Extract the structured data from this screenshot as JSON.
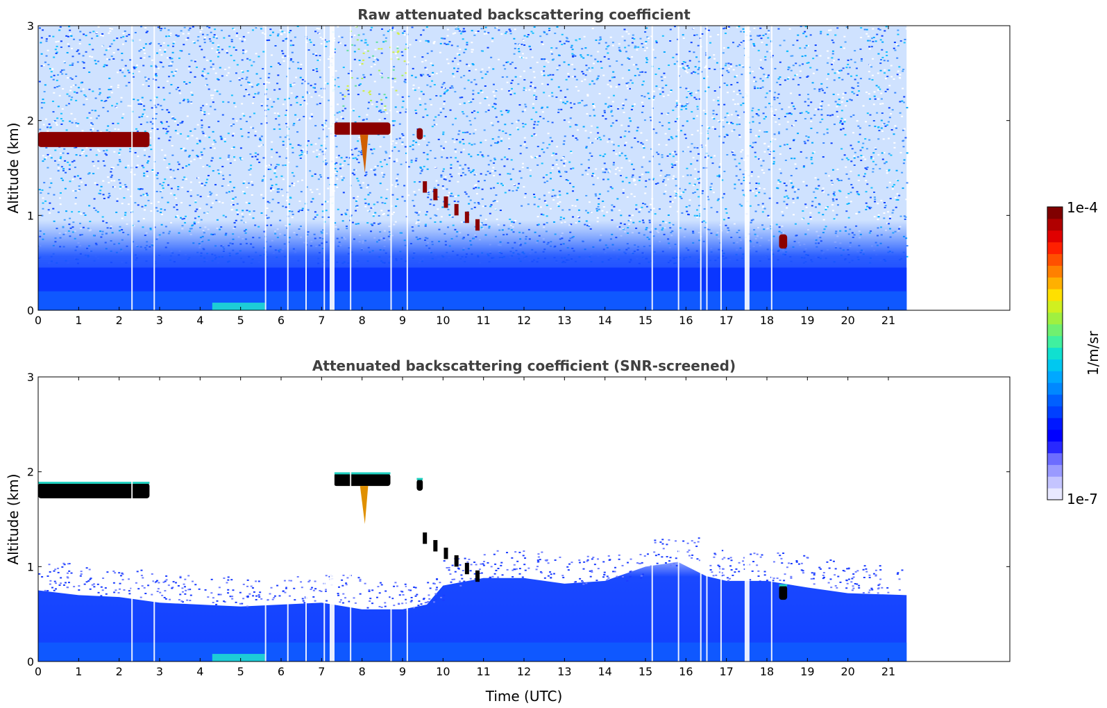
{
  "chart_data": [
    {
      "type": "heatmap",
      "title": "Raw attenuated backscattering coefficient",
      "xlabel": "",
      "ylabel": "Altitude (km)",
      "xlim": [
        0,
        24
      ],
      "ylim": [
        0,
        3
      ],
      "xticks": [
        "0",
        "1",
        "2",
        "3",
        "4",
        "5",
        "6",
        "7",
        "8",
        "9",
        "10",
        "11",
        "12",
        "13",
        "14",
        "15",
        "16",
        "17",
        "18",
        "19",
        "20",
        "21"
      ],
      "yticks": [
        "0",
        "1",
        "2",
        "3"
      ],
      "data_end_hour": 21.45,
      "features": [
        {
          "name": "cloud-layer",
          "x0": 0.0,
          "x1": 2.75,
          "y0": 1.72,
          "y1": 1.88,
          "level": "high"
        },
        {
          "name": "cloud-layer",
          "x0": 7.3,
          "x1": 8.7,
          "y0": 1.85,
          "y1": 1.98,
          "level": "high"
        },
        {
          "name": "virga",
          "x0": 7.95,
          "x1": 8.15,
          "y0": 1.45,
          "y1": 1.85,
          "level": "mid"
        },
        {
          "name": "cloud-fragment",
          "x0": 9.35,
          "x1": 9.5,
          "y0": 1.8,
          "y1": 1.92,
          "level": "high"
        },
        {
          "name": "falling-streak",
          "x0": 9.5,
          "x1": 10.8,
          "y0": 0.9,
          "y1": 1.3,
          "level": "high"
        },
        {
          "name": "aerosol-hotspot",
          "x0": 4.3,
          "x1": 5.6,
          "y0": 0.0,
          "y1": 0.08,
          "level": "mid"
        },
        {
          "name": "plume",
          "x0": 18.3,
          "x1": 18.5,
          "y0": 0.65,
          "y1": 0.8,
          "level": "high"
        }
      ],
      "gaps": [
        2.3,
        2.85,
        5.6,
        6.15,
        6.6,
        7.05,
        7.2,
        7.7,
        8.7,
        9.1,
        15.15,
        15.8,
        16.35,
        16.5,
        16.85,
        17.45,
        18.1
      ]
    },
    {
      "type": "heatmap",
      "title": "Attenuated backscattering coefficient (SNR-screened)",
      "xlabel": "Time (UTC)",
      "ylabel": "Altitude (km)",
      "xlim": [
        0,
        24
      ],
      "ylim": [
        0,
        3
      ],
      "xticks": [
        "0",
        "1",
        "2",
        "3",
        "4",
        "5",
        "6",
        "7",
        "8",
        "9",
        "10",
        "11",
        "12",
        "13",
        "14",
        "15",
        "16",
        "17",
        "18",
        "19",
        "20",
        "21"
      ],
      "yticks": [
        "0",
        "1",
        "2",
        "3"
      ],
      "data_end_hour": 21.45,
      "boundary_layer_top": [
        {
          "t": 0,
          "alt": 0.75
        },
        {
          "t": 1,
          "alt": 0.7
        },
        {
          "t": 2,
          "alt": 0.68
        },
        {
          "t": 3,
          "alt": 0.62
        },
        {
          "t": 4,
          "alt": 0.6
        },
        {
          "t": 5,
          "alt": 0.58
        },
        {
          "t": 6,
          "alt": 0.6
        },
        {
          "t": 7,
          "alt": 0.62
        },
        {
          "t": 8,
          "alt": 0.55
        },
        {
          "t": 9,
          "alt": 0.55
        },
        {
          "t": 9.6,
          "alt": 0.6
        },
        {
          "t": 10,
          "alt": 0.8
        },
        {
          "t": 11,
          "alt": 0.88
        },
        {
          "t": 12,
          "alt": 0.88
        },
        {
          "t": 13,
          "alt": 0.82
        },
        {
          "t": 14,
          "alt": 0.85
        },
        {
          "t": 15,
          "alt": 1.0
        },
        {
          "t": 15.8,
          "alt": 1.05
        },
        {
          "t": 16.5,
          "alt": 0.9
        },
        {
          "t": 17,
          "alt": 0.85
        },
        {
          "t": 18,
          "alt": 0.85
        },
        {
          "t": 19,
          "alt": 0.78
        },
        {
          "t": 20,
          "alt": 0.72
        },
        {
          "t": 21.45,
          "alt": 0.7
        }
      ]
    }
  ],
  "colorbar": {
    "label": "1/m/sr",
    "max_label": "1e-4",
    "min_label": "1e-7",
    "colors": [
      "#e8e8ff",
      "#c4c4ff",
      "#9a9aff",
      "#6c6cff",
      "#2828ff",
      "#0000ff",
      "#0018ff",
      "#0040ff",
      "#0060ff",
      "#0088ff",
      "#00a8ff",
      "#00c8f0",
      "#10e0d0",
      "#40f0a0",
      "#70f070",
      "#a0f040",
      "#d0f020",
      "#ffe000",
      "#ffb000",
      "#ff8000",
      "#ff5000",
      "#ff2000",
      "#e00000",
      "#b00000",
      "#800000"
    ]
  },
  "colors": {
    "cloud": "#8b0000",
    "cloud_core": "#000000",
    "bg_low": "#0a3cff",
    "noise": "#1e64ff"
  }
}
